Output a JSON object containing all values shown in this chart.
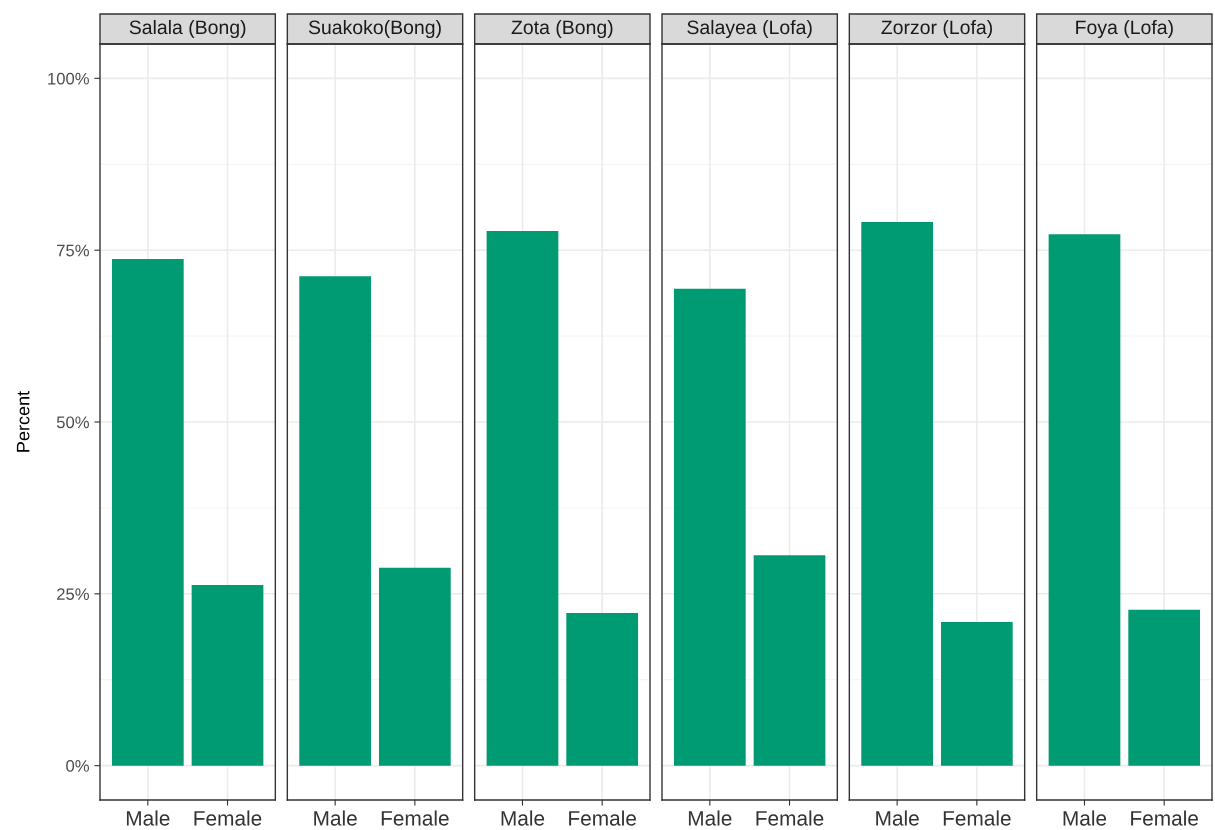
{
  "chart_data": [
    {
      "type": "bar",
      "title": "Salala (Bong)",
      "ylabel": "Percent",
      "categories": [
        "Male",
        "Female"
      ],
      "values": [
        73.7,
        26.3
      ],
      "color": "#009b72",
      "ylim": [
        -5,
        105
      ],
      "yticks": [
        {
          "value": 0,
          "label": "0%"
        },
        {
          "value": 25,
          "label": "25%"
        },
        {
          "value": 50,
          "label": "50%"
        },
        {
          "value": 75,
          "label": "75%"
        },
        {
          "value": 100,
          "label": "100%"
        }
      ],
      "grid": true
    },
    {
      "type": "bar",
      "title": "Suakoko(Bong)",
      "categories": [
        "Male",
        "Female"
      ],
      "values": [
        71.2,
        28.8
      ],
      "color": "#009b72",
      "ylim": [
        -5,
        105
      ],
      "yticks": [
        {
          "value": 0,
          "label": null
        },
        {
          "value": 25,
          "label": null
        },
        {
          "value": 50,
          "label": null
        },
        {
          "value": 75,
          "label": null
        },
        {
          "value": 100,
          "label": null
        }
      ],
      "grid": true,
      "tick_labels": "x"
    },
    {
      "type": "bar",
      "title": "Zota (Bong)",
      "categories": [
        "Male",
        "Female"
      ],
      "values": [
        77.8,
        22.2
      ],
      "color": "#009b72",
      "ylim": [
        -5,
        105
      ],
      "yticks": [
        {
          "value": 0,
          "label": null
        },
        {
          "value": 25,
          "label": null
        },
        {
          "value": 50,
          "label": null
        },
        {
          "value": 75,
          "label": null
        },
        {
          "value": 100,
          "label": null
        }
      ],
      "grid": true,
      "tick_labels": "x"
    },
    {
      "type": "bar",
      "title": "Salayea (Lofa)",
      "categories": [
        "Male",
        "Female"
      ],
      "values": [
        69.4,
        30.6
      ],
      "color": "#009b72",
      "ylim": [
        -5,
        105
      ],
      "yticks": [
        {
          "value": 0,
          "label": null
        },
        {
          "value": 25,
          "label": null
        },
        {
          "value": 50,
          "label": null
        },
        {
          "value": 75,
          "label": null
        },
        {
          "value": 100,
          "label": null
        }
      ],
      "grid": true,
      "tick_labels": "x"
    },
    {
      "type": "bar",
      "title": "Zorzor (Lofa)",
      "categories": [
        "Male",
        "Female"
      ],
      "values": [
        79.1,
        20.9
      ],
      "color": "#009b72",
      "ylim": [
        -5,
        105
      ],
      "yticks": [
        {
          "value": 0,
          "label": null
        },
        {
          "value": 25,
          "label": null
        },
        {
          "value": 50,
          "label": null
        },
        {
          "value": 75,
          "label": null
        },
        {
          "value": 100,
          "label": null
        }
      ],
      "grid": true,
      "tick_labels": "x"
    },
    {
      "type": "bar",
      "title": "Foya (Lofa)",
      "categories": [
        "Male",
        "Female"
      ],
      "values": [
        77.3,
        22.7
      ],
      "color": "#009b72",
      "ylim": [
        -5,
        105
      ],
      "yticks": [
        {
          "value": 0,
          "label": null
        },
        {
          "value": 25,
          "label": null
        },
        {
          "value": 50,
          "label": null
        },
        {
          "value": 75,
          "label": null
        },
        {
          "value": 100,
          "label": null
        }
      ],
      "grid": true,
      "tick_labels": "x"
    }
  ]
}
